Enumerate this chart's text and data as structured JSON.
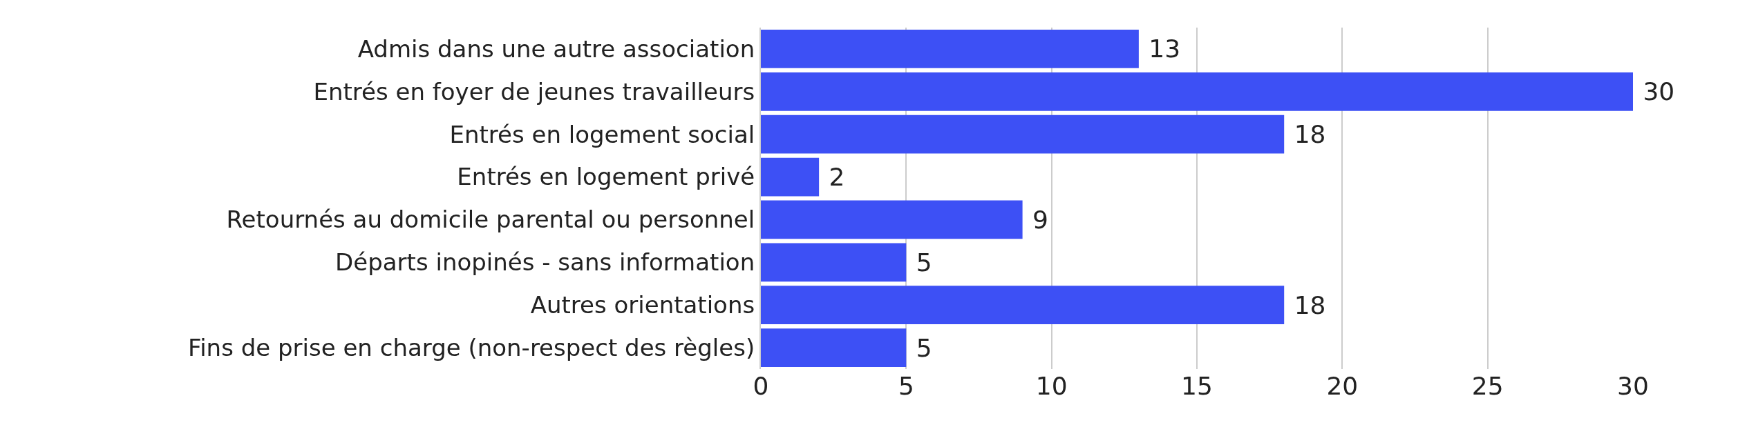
{
  "chart_data": {
    "type": "bar",
    "orientation": "horizontal",
    "categories": [
      "Admis dans une autre association",
      "Entrés en foyer de jeunes travailleurs",
      "Entrés en logement social",
      "Entrés en logement privé",
      "Retournés au domicile parental ou personnel",
      "Départs inopinés - sans information",
      "Autres orientations",
      "Fins de prise en charge (non-respect des règles)"
    ],
    "values": [
      13,
      30,
      18,
      2,
      9,
      5,
      18,
      5
    ],
    "color": "#3d50f5",
    "xlim": [
      0,
      30
    ],
    "xticks": [
      0,
      5,
      10,
      15,
      20,
      25,
      30
    ],
    "grid": "x",
    "data_labels": true
  }
}
